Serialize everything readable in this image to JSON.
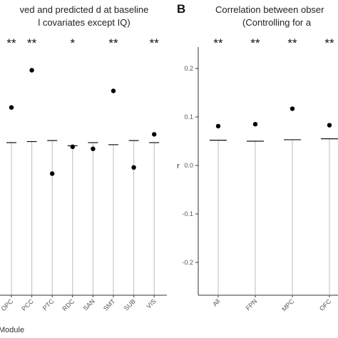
{
  "chart_data": [
    {
      "type": "scatter",
      "panel_letter": "",
      "title_lines": [
        "ved and predicted d at baseline",
        "l covariates except IQ)"
      ],
      "xlabel": "Module",
      "categories": [
        "OPC",
        "PCC",
        "PTC",
        "RDC",
        "SAN",
        "SMT",
        "SUB",
        "VIS"
      ],
      "observed": [
        0.17,
        0.35,
        -0.15,
        -0.02,
        -0.03,
        0.25,
        -0.12,
        0.04
      ],
      "baseline": [
        0.0,
        0.005,
        0.01,
        -0.015,
        0.0,
        -0.01,
        0.01,
        0.0
      ],
      "significance": [
        "**",
        "**",
        "",
        "*",
        "",
        "**",
        "",
        "**"
      ],
      "grid": false
    },
    {
      "type": "scatter",
      "panel_letter": "B",
      "title_lines": [
        "Correlation between obser",
        "(Controlling for a"
      ],
      "ylabel": "r",
      "ylim": [
        -0.25,
        0.25
      ],
      "yticks": [
        "0.2",
        "0.1",
        "0.0",
        "-0.1",
        "-0.2"
      ],
      "categories": [
        "All",
        "FPN",
        "MPC",
        "OFC"
      ],
      "observed": [
        0.081,
        0.085,
        0.117,
        0.083
      ],
      "baseline": [
        0.052,
        0.05,
        0.053,
        0.055
      ],
      "significance": [
        "**",
        "**",
        "**",
        "**"
      ],
      "grid": false
    }
  ]
}
